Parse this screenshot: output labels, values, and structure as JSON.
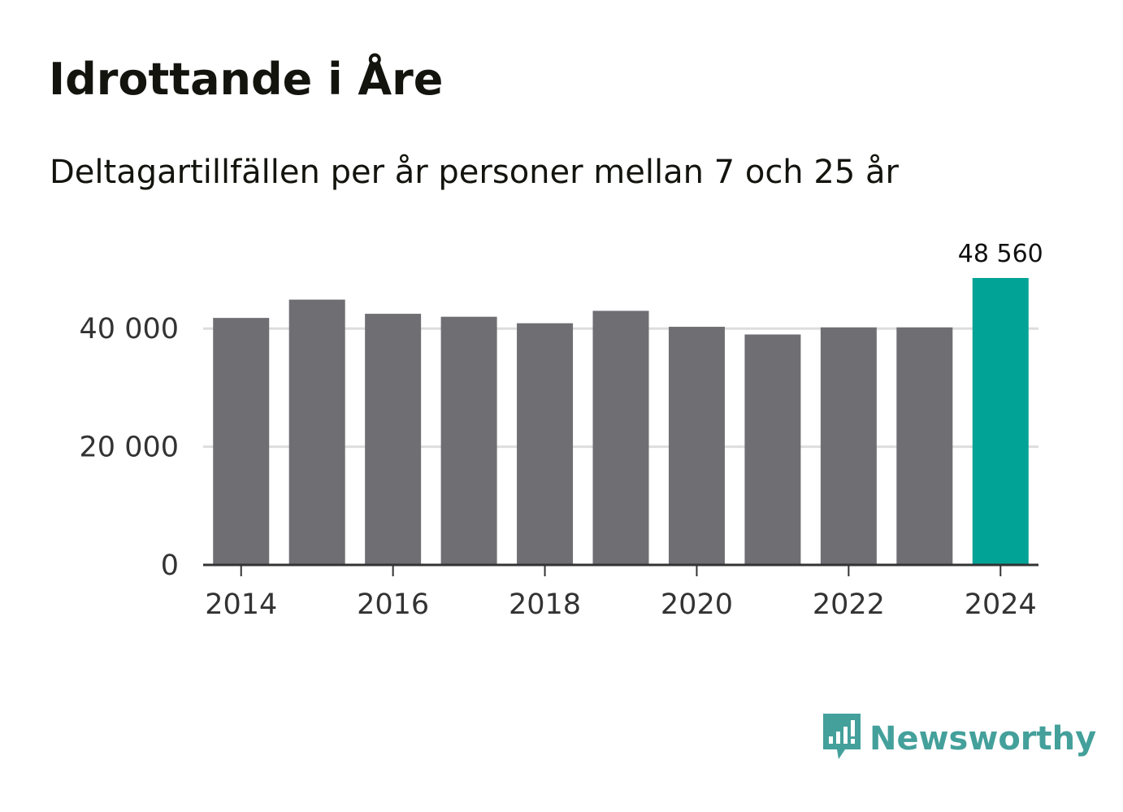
{
  "header": {
    "title": "Idrottande i Åre",
    "subtitle": "Deltagartillfällen per år personer mellan 7 och 25 år"
  },
  "chart_data": {
    "type": "bar",
    "title": "Idrottande i Åre",
    "subtitle": "Deltagartillfällen per år personer mellan 7 och 25 år",
    "xlabel": "",
    "ylabel": "",
    "categories": [
      "2014",
      "2015",
      "2016",
      "2017",
      "2018",
      "2019",
      "2020",
      "2021",
      "2022",
      "2023",
      "2024"
    ],
    "values": [
      41800,
      44900,
      42500,
      42000,
      40900,
      43000,
      40300,
      39000,
      40200,
      40200,
      48560
    ],
    "ylim": [
      0,
      48560
    ],
    "y_ticks": [
      0,
      20000,
      40000
    ],
    "y_tick_labels": [
      "0",
      "20 000",
      "40 000"
    ],
    "x_tick_labels": [
      "2014",
      "2016",
      "2018",
      "2020",
      "2022",
      "2024"
    ],
    "grid": true,
    "highlight": {
      "category": "2024",
      "label": "48 560"
    },
    "colors": {
      "bar": "#6f6e73",
      "highlight": "#00a396",
      "grid": "#dddddd",
      "axis": "#333333",
      "tick_text": "#333333",
      "label_text": "#111111"
    }
  },
  "brand": {
    "name": "Newsworthy",
    "icon": "bar-chart-speech-bubble-icon",
    "color": "#44a09b"
  }
}
